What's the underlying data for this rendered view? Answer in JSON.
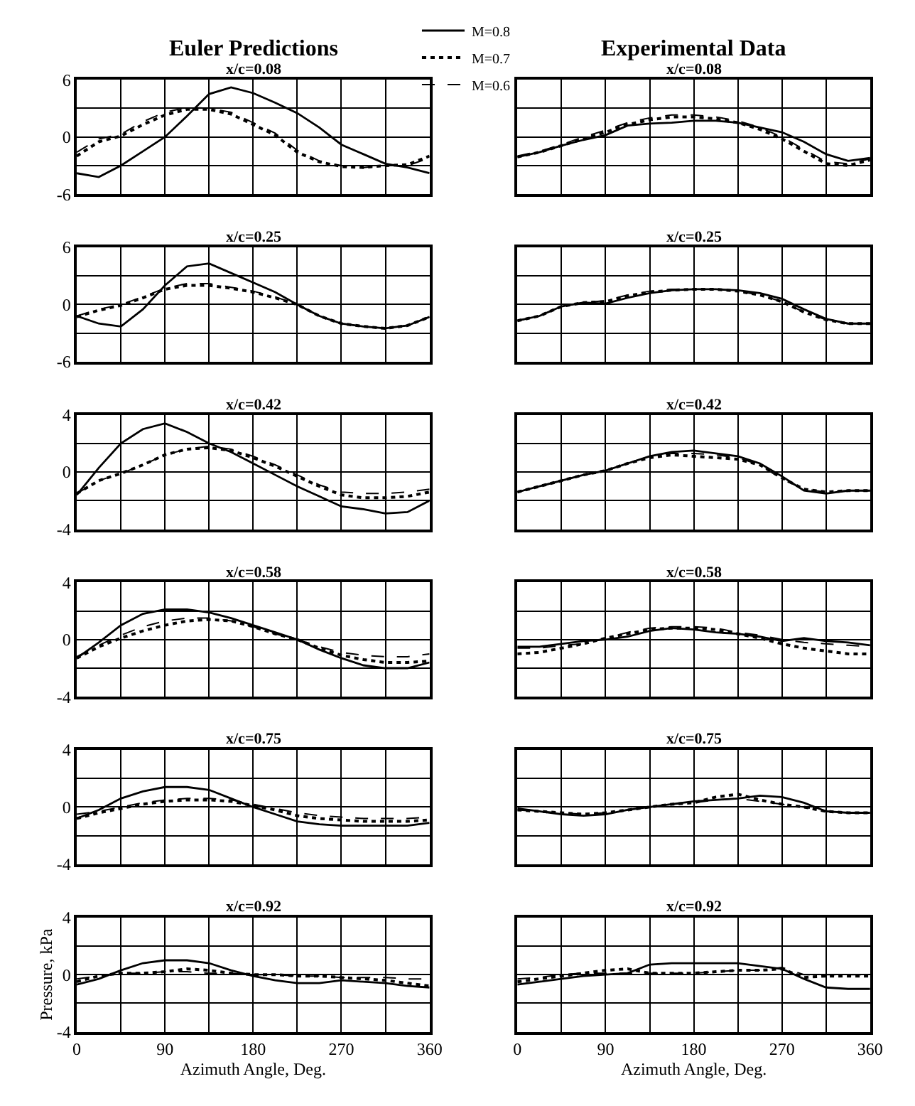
{
  "chart_data": [
    {
      "type": "line",
      "title": "Euler Predictions",
      "subtitle": "x/c=0.08",
      "legend": "top",
      "grid": true,
      "tick_labels": "y",
      "x": [
        0,
        22.5,
        45,
        67.5,
        90,
        112.5,
        135,
        157.5,
        180,
        202.5,
        225,
        247.5,
        270,
        292.5,
        315,
        337.5,
        360
      ],
      "xlim": [
        0,
        360
      ],
      "xticks": [
        0,
        {
          "value": 45,
          "label": null
        },
        90,
        {
          "value": 135,
          "label": null
        },
        180,
        {
          "value": 225,
          "label": null
        },
        270,
        {
          "value": 315,
          "label": null
        },
        360
      ],
      "ylim": [
        -6,
        6
      ],
      "yticks": [
        -6,
        {
          "value": -3,
          "label": null
        },
        0,
        {
          "value": 3,
          "label": null
        },
        6
      ],
      "series": [
        {
          "name": "M=0.8",
          "color": "#000000",
          "line_style": "solid",
          "values": [
            -3.8,
            -4.2,
            -3.0,
            -1.5,
            0,
            2.2,
            4.5,
            5.2,
            4.6,
            3.6,
            2.5,
            1.0,
            -0.8,
            -1.8,
            -2.8,
            -3.2,
            -3.8
          ]
        },
        {
          "name": "M=0.7",
          "color": "#000000",
          "line_style": "dotted",
          "values": [
            -2.0,
            -0.5,
            0.1,
            1.3,
            2.3,
            2.9,
            2.9,
            2.4,
            1.3,
            0.2,
            -1.6,
            -2.6,
            -3.1,
            -3.2,
            -3.0,
            -2.9,
            -2.0
          ]
        },
        {
          "name": "M=0.6",
          "color": "#000000",
          "line_style": "dashed",
          "values": [
            -1.6,
            -0.2,
            0.3,
            1.6,
            2.6,
            3.1,
            3.0,
            2.6,
            1.5,
            0.4,
            -1.4,
            -2.5,
            -3.0,
            -3.2,
            -3.0,
            -3.0,
            -2.2
          ]
        }
      ]
    },
    {
      "type": "line",
      "title": "Experimental Data",
      "subtitle": "x/c=0.08",
      "grid": true,
      "tick_labels": false,
      "x": [
        0,
        22.5,
        45,
        67.5,
        90,
        112.5,
        135,
        157.5,
        180,
        202.5,
        225,
        247.5,
        270,
        292.5,
        315,
        337.5,
        360
      ],
      "xlim": [
        0,
        360
      ],
      "xticks": [
        0,
        {
          "value": 45,
          "label": null
        },
        90,
        {
          "value": 135,
          "label": null
        },
        180,
        {
          "value": 225,
          "label": null
        },
        270,
        {
          "value": 315,
          "label": null
        },
        360
      ],
      "ylim": [
        -6,
        6
      ],
      "yticks": [
        -6,
        {
          "value": -3,
          "label": null
        },
        0,
        {
          "value": 3,
          "label": null
        },
        6
      ],
      "series": [
        {
          "color": "#000000",
          "line_style": "solid",
          "values": [
            -2.1,
            -1.6,
            -0.9,
            -0.3,
            0.2,
            1.2,
            1.4,
            1.5,
            1.7,
            1.7,
            1.5,
            1.0,
            0.5,
            -0.5,
            -1.8,
            -2.5,
            -2.2
          ]
        },
        {
          "color": "#000000",
          "line_style": "dotted",
          "values": [
            -2.1,
            -1.6,
            -0.9,
            -0.2,
            0.5,
            1.3,
            1.8,
            2.1,
            2.1,
            1.9,
            1.5,
            0.8,
            -0.2,
            -1.5,
            -2.8,
            -3.0,
            -2.4
          ]
        },
        {
          "color": "#000000",
          "line_style": "dashed",
          "values": [
            -2.0,
            -1.5,
            -0.8,
            0.0,
            0.7,
            1.5,
            2.0,
            2.3,
            2.3,
            2.1,
            1.7,
            1.0,
            0.0,
            -1.3,
            -2.6,
            -2.8,
            -2.3
          ]
        }
      ]
    },
    {
      "type": "line",
      "title": "x/c=0.25",
      "grid": true,
      "tick_labels": "y",
      "x": [
        0,
        22.5,
        45,
        67.5,
        90,
        112.5,
        135,
        157.5,
        180,
        202.5,
        225,
        247.5,
        270,
        292.5,
        315,
        337.5,
        360
      ],
      "xlim": [
        0,
        360
      ],
      "xticks": [
        0,
        {
          "value": 45,
          "label": null
        },
        90,
        {
          "value": 135,
          "label": null
        },
        180,
        {
          "value": 225,
          "label": null
        },
        270,
        {
          "value": 315,
          "label": null
        },
        360
      ],
      "ylim": [
        -6,
        6
      ],
      "yticks": [
        -6,
        {
          "value": -3,
          "label": null
        },
        0,
        {
          "value": 3,
          "label": null
        },
        6
      ],
      "series": [
        {
          "color": "#000000",
          "line_style": "solid",
          "values": [
            -1.2,
            -2.0,
            -2.3,
            -0.5,
            2.0,
            4.0,
            4.3,
            3.3,
            2.3,
            1.3,
            0,
            -1.2,
            -2.0,
            -2.3,
            -2.5,
            -2.2,
            -1.3
          ]
        },
        {
          "color": "#000000",
          "line_style": "dotted",
          "values": [
            -1.3,
            -0.6,
            -0.1,
            0.7,
            1.6,
            2.0,
            2.0,
            1.7,
            1.3,
            0.7,
            0,
            -1.2,
            -2.0,
            -2.3,
            -2.5,
            -2.2,
            -1.3
          ]
        },
        {
          "color": "#000000",
          "line_style": "dashed",
          "values": [
            -1.2,
            -0.5,
            0,
            0.8,
            1.7,
            2.2,
            2.2,
            1.8,
            1.4,
            0.8,
            0,
            -1.2,
            -2.0,
            -2.3,
            -2.5,
            -2.2,
            -1.3
          ]
        }
      ]
    },
    {
      "type": "line",
      "title": "x/c=0.25",
      "grid": true,
      "tick_labels": false,
      "x": [
        0,
        22.5,
        45,
        67.5,
        90,
        112.5,
        135,
        157.5,
        180,
        202.5,
        225,
        247.5,
        270,
        292.5,
        315,
        337.5,
        360
      ],
      "xlim": [
        0,
        360
      ],
      "xticks": [
        0,
        {
          "value": 45,
          "label": null
        },
        90,
        {
          "value": 135,
          "label": null
        },
        180,
        {
          "value": 225,
          "label": null
        },
        270,
        {
          "value": 315,
          "label": null
        },
        360
      ],
      "ylim": [
        -6,
        6
      ],
      "yticks": [
        -6,
        {
          "value": -3,
          "label": null
        },
        0,
        {
          "value": 3,
          "label": null
        },
        6
      ],
      "series": [
        {
          "color": "#000000",
          "line_style": "solid",
          "values": [
            -1.7,
            -1.2,
            -0.2,
            0.2,
            0.1,
            0.7,
            1.2,
            1.5,
            1.6,
            1.6,
            1.5,
            1.2,
            0.6,
            -0.5,
            -1.5,
            -2.0,
            -2.0
          ]
        },
        {
          "color": "#000000",
          "line_style": "dotted",
          "values": [
            -1.7,
            -1.2,
            -0.2,
            0.2,
            0.3,
            0.9,
            1.3,
            1.5,
            1.6,
            1.6,
            1.4,
            1.0,
            0.3,
            -0.8,
            -1.6,
            -2.0,
            -2.0
          ]
        },
        {
          "color": "#000000",
          "line_style": "dashed",
          "values": [
            -1.7,
            -1.2,
            -0.2,
            0.2,
            0.4,
            1.0,
            1.4,
            1.6,
            1.6,
            1.6,
            1.4,
            1.0,
            0.3,
            -0.8,
            -1.6,
            -2.0,
            -2.0
          ]
        }
      ]
    },
    {
      "type": "line",
      "title": "x/c=0.42",
      "grid": true,
      "tick_labels": "y",
      "x": [
        0,
        22.5,
        45,
        67.5,
        90,
        112.5,
        135,
        157.5,
        180,
        202.5,
        225,
        247.5,
        270,
        292.5,
        315,
        337.5,
        360
      ],
      "xlim": [
        0,
        360
      ],
      "xticks": [
        0,
        {
          "value": 45,
          "label": null
        },
        90,
        {
          "value": 135,
          "label": null
        },
        180,
        {
          "value": 225,
          "label": null
        },
        270,
        {
          "value": 315,
          "label": null
        },
        360
      ],
      "ylim": [
        -4,
        4
      ],
      "yticks": [
        -4,
        {
          "value": -2,
          "label": null
        },
        0,
        {
          "value": 2,
          "label": null
        },
        4
      ],
      "series": [
        {
          "color": "#000000",
          "line_style": "solid",
          "values": [
            -1.6,
            0.3,
            2.0,
            3.0,
            3.4,
            2.8,
            2.0,
            1.4,
            0.6,
            -0.2,
            -1.0,
            -1.7,
            -2.4,
            -2.6,
            -2.9,
            -2.8,
            -2.0
          ]
        },
        {
          "color": "#000000",
          "line_style": "dotted",
          "values": [
            -1.5,
            -0.6,
            -0.1,
            0.5,
            1.2,
            1.6,
            1.7,
            1.5,
            1.0,
            0.4,
            -0.3,
            -1.0,
            -1.6,
            -1.8,
            -1.8,
            -1.7,
            -1.4
          ]
        },
        {
          "color": "#000000",
          "line_style": "dashed",
          "values": [
            -1.5,
            -0.6,
            -0.1,
            0.5,
            1.2,
            1.6,
            1.8,
            1.6,
            1.1,
            0.5,
            -0.2,
            -0.9,
            -1.4,
            -1.5,
            -1.5,
            -1.4,
            -1.2
          ]
        }
      ]
    },
    {
      "type": "line",
      "title": "x/c=0.42",
      "grid": true,
      "tick_labels": false,
      "x": [
        0,
        22.5,
        45,
        67.5,
        90,
        112.5,
        135,
        157.5,
        180,
        202.5,
        225,
        247.5,
        270,
        292.5,
        315,
        337.5,
        360
      ],
      "xlim": [
        0,
        360
      ],
      "xticks": [
        0,
        {
          "value": 45,
          "label": null
        },
        90,
        {
          "value": 135,
          "label": null
        },
        180,
        {
          "value": 225,
          "label": null
        },
        270,
        {
          "value": 315,
          "label": null
        },
        360
      ],
      "ylim": [
        -4,
        4
      ],
      "yticks": [
        -4,
        {
          "value": -2,
          "label": null
        },
        0,
        {
          "value": 2,
          "label": null
        },
        4
      ],
      "series": [
        {
          "color": "#000000",
          "line_style": "solid",
          "values": [
            -1.4,
            -1.0,
            -0.6,
            -0.2,
            0.1,
            0.6,
            1.1,
            1.4,
            1.5,
            1.3,
            1.1,
            0.6,
            -0.3,
            -1.3,
            -1.5,
            -1.3,
            -1.3
          ]
        },
        {
          "color": "#000000",
          "line_style": "dotted",
          "values": [
            -1.4,
            -1.0,
            -0.6,
            -0.2,
            0.1,
            0.6,
            1.0,
            1.2,
            1.1,
            1.0,
            0.9,
            0.5,
            -0.4,
            -1.2,
            -1.4,
            -1.3,
            -1.3
          ]
        },
        {
          "color": "#000000",
          "line_style": "dashed",
          "values": [
            -1.4,
            -1.0,
            -0.6,
            -0.2,
            0.1,
            0.6,
            1.1,
            1.3,
            1.3,
            1.2,
            1.0,
            0.5,
            -0.5,
            -1.2,
            -1.4,
            -1.3,
            -1.3
          ]
        }
      ]
    },
    {
      "type": "line",
      "title": "x/c=0.58",
      "grid": true,
      "tick_labels": "y",
      "x": [
        0,
        22.5,
        45,
        67.5,
        90,
        112.5,
        135,
        157.5,
        180,
        202.5,
        225,
        247.5,
        270,
        292.5,
        315,
        337.5,
        360
      ],
      "xlim": [
        0,
        360
      ],
      "xticks": [
        0,
        {
          "value": 45,
          "label": null
        },
        90,
        {
          "value": 135,
          "label": null
        },
        180,
        {
          "value": 225,
          "label": null
        },
        270,
        {
          "value": 315,
          "label": null
        },
        360
      ],
      "ylim": [
        -4,
        4
      ],
      "yticks": [
        -4,
        {
          "value": -2,
          "label": null
        },
        0,
        {
          "value": 2,
          "label": null
        },
        4
      ],
      "series": [
        {
          "color": "#000000",
          "line_style": "solid",
          "values": [
            -1.3,
            -0.2,
            1.0,
            1.8,
            2.1,
            2.1,
            1.9,
            1.5,
            1.0,
            0.5,
            0.0,
            -0.7,
            -1.3,
            -1.8,
            -2.0,
            -2.0,
            -1.6
          ]
        },
        {
          "color": "#000000",
          "line_style": "dotted",
          "values": [
            -1.3,
            -0.5,
            0.1,
            0.6,
            1.0,
            1.3,
            1.4,
            1.3,
            0.9,
            0.4,
            0.0,
            -0.6,
            -1.1,
            -1.4,
            -1.6,
            -1.6,
            -1.5
          ]
        },
        {
          "color": "#000000",
          "line_style": "dashed",
          "values": [
            -1.2,
            -0.4,
            0.3,
            0.9,
            1.3,
            1.5,
            1.5,
            1.3,
            0.9,
            0.4,
            0.0,
            -0.5,
            -0.9,
            -1.1,
            -1.2,
            -1.2,
            -1.0
          ]
        }
      ]
    },
    {
      "type": "line",
      "title": "x/c=0.58",
      "grid": true,
      "tick_labels": false,
      "x": [
        0,
        22.5,
        45,
        67.5,
        90,
        112.5,
        135,
        157.5,
        180,
        202.5,
        225,
        247.5,
        270,
        292.5,
        315,
        337.5,
        360
      ],
      "xlim": [
        0,
        360
      ],
      "xticks": [
        0,
        {
          "value": 45,
          "label": null
        },
        90,
        {
          "value": 135,
          "label": null
        },
        180,
        {
          "value": 225,
          "label": null
        },
        270,
        {
          "value": 315,
          "label": null
        },
        360
      ],
      "ylim": [
        -4,
        4
      ],
      "yticks": [
        -4,
        {
          "value": -2,
          "label": null
        },
        0,
        {
          "value": 2,
          "label": null
        },
        4
      ],
      "series": [
        {
          "color": "#000000",
          "line_style": "solid",
          "values": [
            -0.5,
            -0.5,
            -0.3,
            -0.1,
            0.0,
            0.2,
            0.6,
            0.8,
            0.7,
            0.5,
            0.4,
            0.2,
            -0.1,
            0.1,
            -0.1,
            -0.2,
            -0.4
          ]
        },
        {
          "color": "#000000",
          "line_style": "dotted",
          "values": [
            -1.0,
            -0.9,
            -0.6,
            -0.3,
            0.1,
            0.4,
            0.7,
            0.8,
            0.8,
            0.7,
            0.4,
            0.1,
            -0.3,
            -0.6,
            -0.8,
            -1.0,
            -1.0
          ]
        },
        {
          "color": "#000000",
          "line_style": "dashed",
          "values": [
            -0.6,
            -0.6,
            -0.4,
            -0.3,
            0.1,
            0.5,
            0.8,
            0.9,
            0.9,
            0.8,
            0.5,
            0.3,
            0.0,
            -0.2,
            -0.3,
            -0.4,
            -0.5
          ]
        }
      ]
    },
    {
      "type": "line",
      "title": "x/c=0.75",
      "grid": true,
      "tick_labels": "y",
      "x": [
        0,
        22.5,
        45,
        67.5,
        90,
        112.5,
        135,
        157.5,
        180,
        202.5,
        225,
        247.5,
        270,
        292.5,
        315,
        337.5,
        360
      ],
      "xlim": [
        0,
        360
      ],
      "xticks": [
        0,
        {
          "value": 45,
          "label": null
        },
        90,
        {
          "value": 135,
          "label": null
        },
        180,
        {
          "value": 225,
          "label": null
        },
        270,
        {
          "value": 315,
          "label": null
        },
        360
      ],
      "ylim": [
        -4,
        4
      ],
      "yticks": [
        -4,
        {
          "value": -2,
          "label": null
        },
        0,
        {
          "value": 2,
          "label": null
        },
        4
      ],
      "series": [
        {
          "color": "#000000",
          "line_style": "solid",
          "values": [
            -0.8,
            -0.2,
            0.6,
            1.1,
            1.4,
            1.4,
            1.2,
            0.6,
            0.0,
            -0.5,
            -1.0,
            -1.2,
            -1.3,
            -1.3,
            -1.3,
            -1.3,
            -1.1
          ]
        },
        {
          "color": "#000000",
          "line_style": "dotted",
          "values": [
            -0.8,
            -0.4,
            -0.1,
            0.2,
            0.4,
            0.5,
            0.5,
            0.4,
            0.1,
            -0.2,
            -0.6,
            -0.8,
            -0.9,
            -1.0,
            -1.0,
            -1.0,
            -0.9
          ]
        },
        {
          "color": "#000000",
          "line_style": "dashed",
          "values": [
            -0.5,
            -0.3,
            0.0,
            0.3,
            0.5,
            0.6,
            0.6,
            0.5,
            0.2,
            -0.1,
            -0.4,
            -0.6,
            -0.7,
            -0.8,
            -0.8,
            -0.8,
            -0.7
          ]
        }
      ]
    },
    {
      "type": "line",
      "title": "x/c=0.75",
      "grid": true,
      "tick_labels": false,
      "x": [
        0,
        22.5,
        45,
        67.5,
        90,
        112.5,
        135,
        157.5,
        180,
        202.5,
        225,
        247.5,
        270,
        292.5,
        315,
        337.5,
        360
      ],
      "xlim": [
        0,
        360
      ],
      "xticks": [
        0,
        {
          "value": 45,
          "label": null
        },
        90,
        {
          "value": 135,
          "label": null
        },
        180,
        {
          "value": 225,
          "label": null
        },
        270,
        {
          "value": 315,
          "label": null
        },
        360
      ],
      "ylim": [
        -4,
        4
      ],
      "yticks": [
        -4,
        {
          "value": -2,
          "label": null
        },
        0,
        {
          "value": 2,
          "label": null
        },
        4
      ],
      "series": [
        {
          "color": "#000000",
          "line_style": "solid",
          "values": [
            -0.1,
            -0.3,
            -0.5,
            -0.6,
            -0.5,
            -0.2,
            0.0,
            0.2,
            0.4,
            0.5,
            0.6,
            0.8,
            0.7,
            0.3,
            -0.3,
            -0.4,
            -0.4
          ]
        },
        {
          "color": "#000000",
          "line_style": "dotted",
          "values": [
            -0.2,
            -0.3,
            -0.4,
            -0.5,
            -0.4,
            -0.2,
            0.0,
            0.2,
            0.3,
            0.7,
            0.9,
            0.5,
            0.2,
            0.0,
            -0.3,
            -0.4,
            -0.4
          ]
        },
        {
          "color": "#000000",
          "line_style": "dashed",
          "values": [
            -0.2,
            -0.3,
            -0.4,
            -0.5,
            -0.4,
            -0.2,
            0.0,
            0.2,
            0.3,
            0.5,
            0.6,
            0.4,
            0.2,
            0.0,
            -0.3,
            -0.4,
            -0.4
          ]
        }
      ]
    },
    {
      "type": "line",
      "title": "x/c=0.92",
      "grid": true,
      "xlabel": "Azimuth Angle, Deg.",
      "ylabel": "Pressure, kPa",
      "x": [
        0,
        22.5,
        45,
        67.5,
        90,
        112.5,
        135,
        157.5,
        180,
        202.5,
        225,
        247.5,
        270,
        292.5,
        315,
        337.5,
        360
      ],
      "xlim": [
        0,
        360
      ],
      "xticks": [
        0,
        {
          "value": 45,
          "label": null
        },
        90,
        {
          "value": 135,
          "label": null
        },
        180,
        {
          "value": 225,
          "label": null
        },
        270,
        {
          "value": 315,
          "label": null
        },
        360
      ],
      "ylim": [
        -4,
        4
      ],
      "yticks": [
        -4,
        {
          "value": -2,
          "label": null
        },
        0,
        {
          "value": 2,
          "label": null
        },
        4
      ],
      "series": [
        {
          "color": "#000000",
          "line_style": "solid",
          "values": [
            -0.7,
            -0.3,
            0.3,
            0.8,
            1.0,
            1.0,
            0.8,
            0.3,
            -0.1,
            -0.4,
            -0.6,
            -0.6,
            -0.4,
            -0.5,
            -0.6,
            -0.8,
            -0.9
          ]
        },
        {
          "color": "#000000",
          "line_style": "dotted",
          "values": [
            -0.5,
            -0.1,
            0.1,
            0.1,
            0.2,
            0.4,
            0.3,
            0.1,
            0.0,
            0.0,
            -0.1,
            -0.1,
            -0.2,
            -0.3,
            -0.4,
            -0.6,
            -0.8
          ]
        },
        {
          "color": "#000000",
          "line_style": "dashed",
          "values": [
            -0.3,
            -0.1,
            0.1,
            0.1,
            0.2,
            0.2,
            0.1,
            0.1,
            0.0,
            0.0,
            -0.1,
            -0.1,
            -0.2,
            -0.2,
            -0.2,
            -0.3,
            -0.3
          ]
        }
      ]
    },
    {
      "type": "line",
      "title": "x/c=0.92",
      "grid": true,
      "tick_labels": "x",
      "xlabel": "Azimuth Angle, Deg.",
      "x": [
        0,
        22.5,
        45,
        67.5,
        90,
        112.5,
        135,
        157.5,
        180,
        202.5,
        225,
        247.5,
        270,
        292.5,
        315,
        337.5,
        360
      ],
      "xlim": [
        0,
        360
      ],
      "xticks": [
        0,
        {
          "value": 45,
          "label": null
        },
        90,
        {
          "value": 135,
          "label": null
        },
        180,
        {
          "value": 225,
          "label": null
        },
        270,
        {
          "value": 315,
          "label": null
        },
        360
      ],
      "ylim": [
        -4,
        4
      ],
      "yticks": [
        -4,
        {
          "value": -2,
          "label": null
        },
        0,
        {
          "value": 2,
          "label": null
        },
        4
      ],
      "series": [
        {
          "color": "#000000",
          "line_style": "solid",
          "values": [
            -0.7,
            -0.5,
            -0.3,
            -0.1,
            0.0,
            0.1,
            0.7,
            0.8,
            0.8,
            0.8,
            0.8,
            0.6,
            0.4,
            -0.3,
            -0.9,
            -1.0,
            -1.0
          ]
        },
        {
          "color": "#000000",
          "line_style": "dotted",
          "values": [
            -0.5,
            -0.3,
            -0.1,
            0.1,
            0.3,
            0.4,
            0.1,
            0.1,
            0.1,
            0.2,
            0.3,
            0.3,
            0.4,
            -0.2,
            -0.1,
            -0.1,
            -0.1
          ]
        },
        {
          "color": "#000000",
          "line_style": "dashed",
          "values": [
            -0.3,
            -0.2,
            0.0,
            0.1,
            0.1,
            0.1,
            0.1,
            0.1,
            0.1,
            0.2,
            0.3,
            0.3,
            0.5,
            0.0,
            0.0,
            0.0,
            0.0
          ]
        }
      ]
    }
  ]
}
